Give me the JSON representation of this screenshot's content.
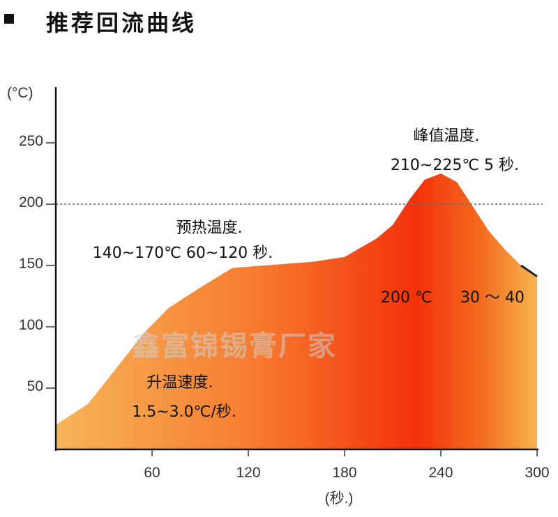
{
  "header": {
    "title": "推荐回流曲线"
  },
  "chart_data": {
    "type": "area",
    "title": "推荐回流曲线",
    "xlabel": "(秒.)",
    "ylabel": "(°C)",
    "xlim": [
      0,
      300
    ],
    "ylim": [
      0,
      270
    ],
    "x_ticks": [
      60,
      120,
      180,
      240,
      300
    ],
    "y_ticks": [
      50,
      100,
      150,
      200,
      250
    ],
    "reference_line": {
      "y": 200,
      "style": "dashed"
    },
    "grid": false,
    "legend": "none",
    "series": [
      {
        "x": [
          0,
          20,
          40,
          55,
          70,
          90,
          110,
          130,
          160,
          180,
          200,
          210,
          220,
          230,
          240,
          250,
          260,
          270,
          280,
          290,
          300
        ],
        "y": [
          20,
          37,
          70,
          95,
          115,
          132,
          148,
          150,
          153,
          157,
          172,
          183,
          203,
          220,
          225,
          218,
          198,
          178,
          163,
          150,
          141
        ],
        "fill_gradient": [
          "#f7b45a",
          "#f46a1d",
          "#f3310a",
          "#f8b550"
        ]
      }
    ],
    "annotations": {
      "preheat_line1": "预热温度.",
      "preheat_line2": "140~170℃  60~120 秒.",
      "ramp_line1": "升温速度.",
      "ramp_line2": "1.5~3.0℃/秒.",
      "peak_line1": "峰值温度.",
      "peak_line2": "210~225℃  5 秒.",
      "above200_a": "200 ℃",
      "above200_b": "30 ～ 40"
    }
  },
  "watermark": "鑫富锦锡膏厂家"
}
